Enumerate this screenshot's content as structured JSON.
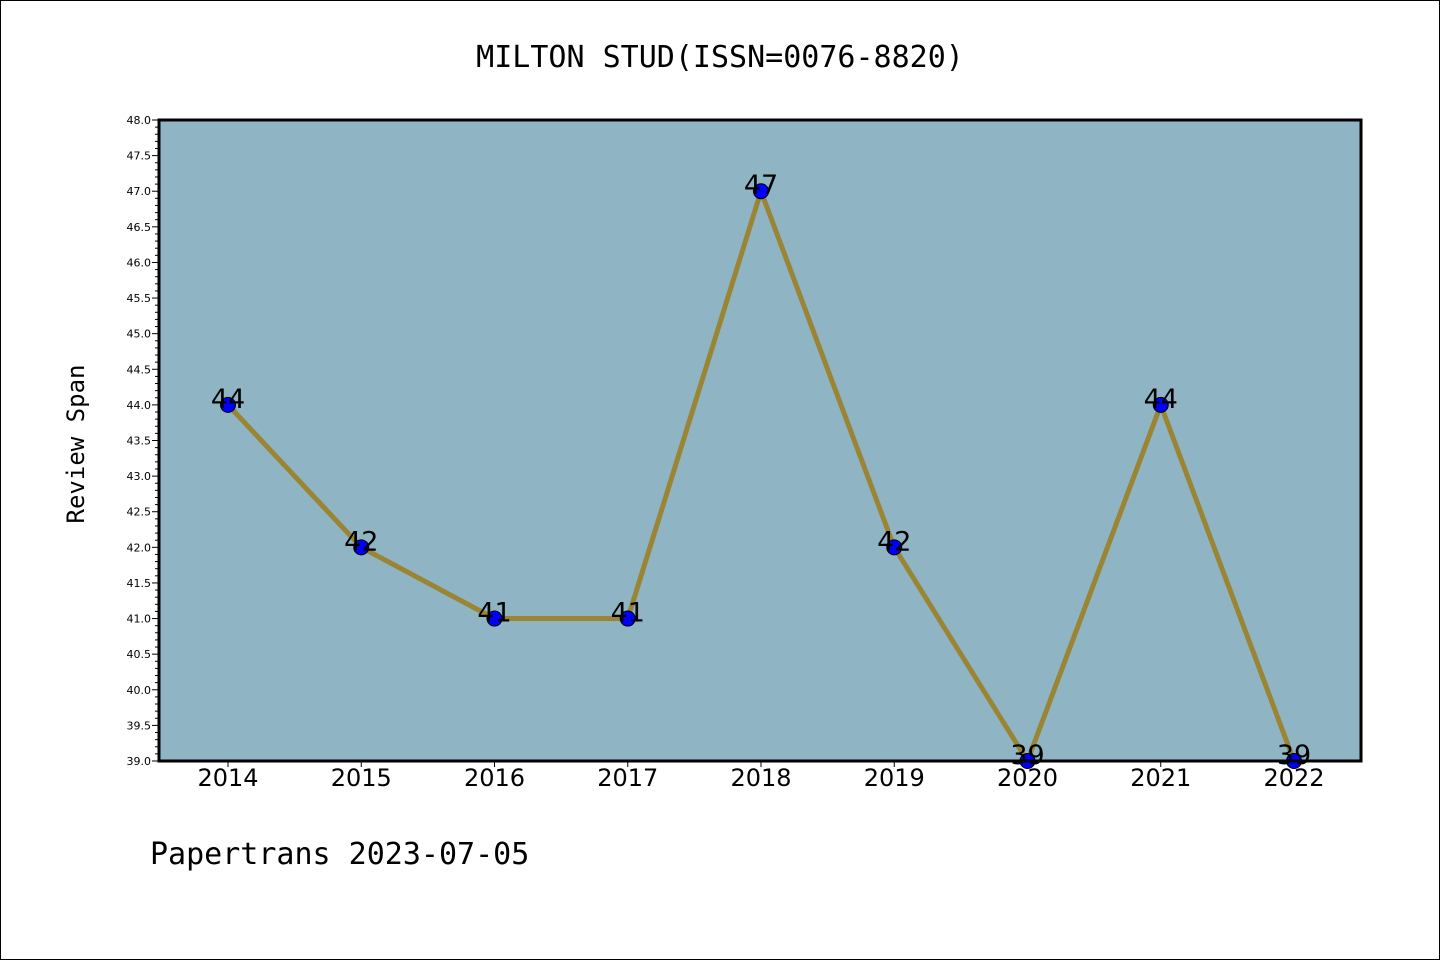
{
  "chart_data": {
    "type": "line",
    "title": "MILTON STUD(ISSN=0076-8820)",
    "xlabel": "",
    "ylabel": "Review Span",
    "categories": [
      "2014",
      "2015",
      "2016",
      "2017",
      "2018",
      "2019",
      "2020",
      "2021",
      "2022"
    ],
    "values": [
      44,
      42,
      41,
      41,
      47,
      42,
      39,
      44,
      39
    ],
    "data_labels": [
      "44",
      "42",
      "41",
      "41",
      "47",
      "42",
      "39",
      "44",
      "39"
    ],
    "ylim": [
      39.0,
      48.0
    ],
    "yticks": [
      "39.0",
      "39.5",
      "40.0",
      "40.5",
      "41.0",
      "41.5",
      "42.0",
      "42.5",
      "43.0",
      "43.5",
      "44.0",
      "44.5",
      "45.0",
      "45.5",
      "46.0",
      "46.5",
      "47.0",
      "47.5",
      "48.0"
    ],
    "grid": false,
    "colors": {
      "plot_background": "#8fb5c4",
      "line": "#9a8535",
      "marker": "#0000ff"
    }
  },
  "footer": {
    "text": "Papertrans 2023-07-05"
  }
}
